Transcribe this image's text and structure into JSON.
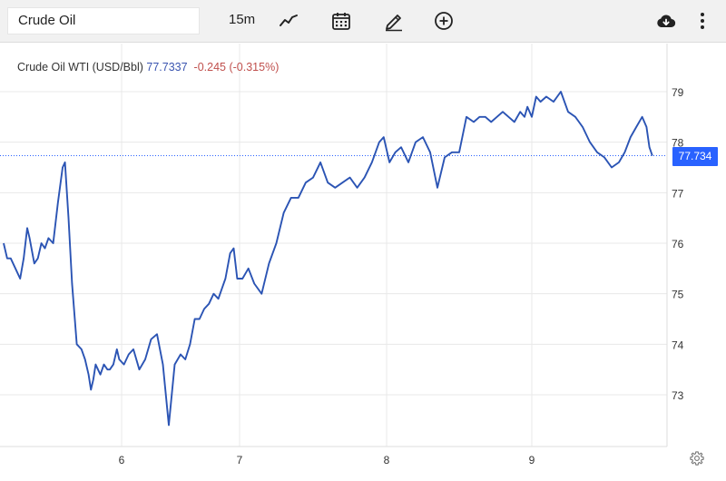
{
  "toolbar": {
    "symbol": "Crude Oil",
    "interval": "15m",
    "icons": [
      "chart-type-icon",
      "calendar-icon",
      "draw-pencil-icon",
      "add-circle-icon",
      "download-cloud-icon",
      "more-vertical-icon"
    ]
  },
  "header": {
    "name": "Crude Oil WTI (USD/Bbl)",
    "price": "77.7337",
    "change": "-0.245",
    "change_pct": "(-0.315%)"
  },
  "price_badge": "77.734",
  "colors": {
    "line": "#2b54b4",
    "badge": "#2962ff",
    "negative": "#c0504d",
    "grid": "#e8e8e8"
  },
  "chart_data": {
    "type": "line",
    "title": "",
    "xlabel": "",
    "ylabel": "",
    "x_tick_labels": [
      "6",
      "7",
      "8",
      "9"
    ],
    "y_tick_labels": [
      "73",
      "74",
      "75",
      "76",
      "77",
      "78",
      "79"
    ],
    "ylim": [
      72.2,
      79.4
    ],
    "grid": true,
    "series": [
      {
        "x": [
          5.0,
          5.03,
          5.06,
          5.1,
          5.14,
          5.17,
          5.2,
          5.22,
          5.26,
          5.29,
          5.32,
          5.35,
          5.38,
          5.42,
          5.46,
          5.5,
          5.52,
          5.55,
          5.58,
          5.62,
          5.66,
          5.69,
          5.72,
          5.74,
          5.76,
          5.78,
          5.8,
          5.82,
          5.85,
          5.88,
          5.9,
          5.93,
          5.96,
          5.98,
          6.02,
          6.06,
          6.1,
          6.15,
          6.2,
          6.25,
          6.3,
          6.35,
          6.4,
          6.45,
          6.5,
          6.54,
          6.58,
          6.62,
          6.66,
          6.7,
          6.74,
          6.78,
          6.82,
          6.85,
          6.88,
          6.92,
          6.95,
          6.98,
          7.02,
          7.06,
          7.1,
          7.15,
          7.2,
          7.25,
          7.3,
          7.35,
          7.4,
          7.45,
          7.5,
          7.55,
          7.6,
          7.65,
          7.7,
          7.75,
          7.8,
          7.85,
          7.9,
          7.95,
          7.98,
          8.02,
          8.06,
          8.1,
          8.15,
          8.2,
          8.25,
          8.3,
          8.35,
          8.4,
          8.45,
          8.5,
          8.55,
          8.6,
          8.64,
          8.68,
          8.72,
          8.76,
          8.8,
          8.84,
          8.88,
          8.92,
          8.95,
          8.97,
          9.0,
          9.03,
          9.06,
          9.1,
          9.15,
          9.2,
          9.25,
          9.3,
          9.35,
          9.4,
          9.45,
          9.5,
          9.55,
          9.6,
          9.64,
          9.68,
          9.72,
          9.76,
          9.79,
          9.81,
          9.83
        ],
        "y": [
          76.0,
          75.7,
          75.7,
          75.5,
          75.3,
          75.7,
          76.3,
          76.1,
          75.6,
          75.7,
          76.0,
          75.9,
          76.1,
          76.0,
          76.8,
          77.5,
          77.6,
          76.5,
          75.2,
          74.0,
          73.9,
          73.7,
          73.4,
          73.1,
          73.3,
          73.6,
          73.5,
          73.4,
          73.6,
          73.5,
          73.5,
          73.6,
          73.9,
          73.7,
          73.6,
          73.8,
          73.9,
          73.5,
          73.7,
          74.1,
          74.2,
          73.6,
          72.4,
          73.6,
          73.8,
          73.7,
          74.0,
          74.5,
          74.5,
          74.7,
          74.8,
          75.0,
          74.9,
          75.1,
          75.3,
          75.8,
          75.9,
          75.3,
          75.3,
          75.5,
          75.2,
          75.0,
          75.6,
          76.0,
          76.6,
          76.9,
          76.9,
          77.2,
          77.3,
          77.6,
          77.2,
          77.1,
          77.2,
          77.3,
          77.1,
          77.3,
          77.6,
          78.0,
          78.1,
          77.6,
          77.8,
          77.9,
          77.6,
          78.0,
          78.1,
          77.8,
          77.1,
          77.7,
          77.8,
          77.8,
          78.5,
          78.4,
          78.5,
          78.5,
          78.4,
          78.5,
          78.6,
          78.5,
          78.4,
          78.6,
          78.5,
          78.7,
          78.5,
          78.9,
          78.8,
          78.9,
          78.8,
          79.0,
          78.6,
          78.5,
          78.3,
          78.0,
          77.8,
          77.7,
          77.5,
          77.6,
          77.8,
          78.1,
          78.3,
          78.5,
          78.3,
          77.9,
          77.7337
        ]
      }
    ]
  }
}
